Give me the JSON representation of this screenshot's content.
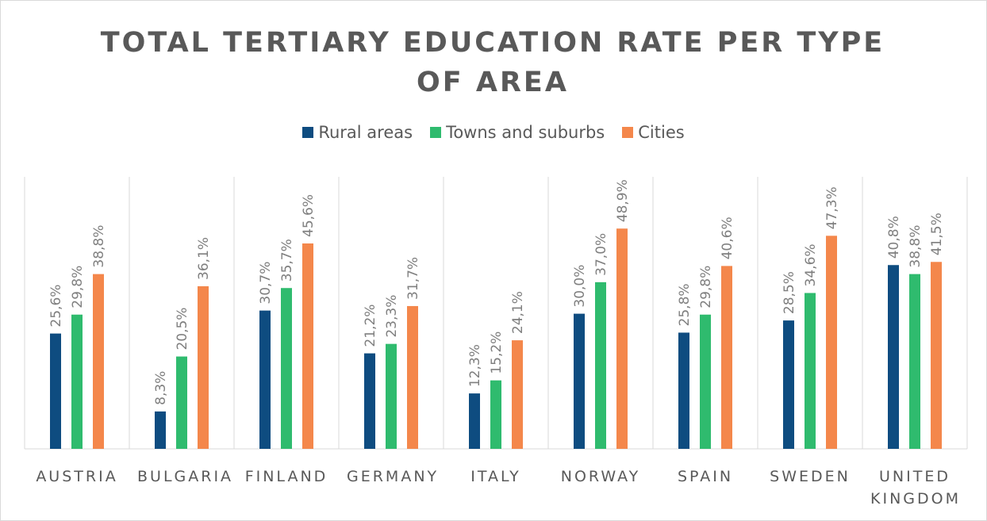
{
  "chart_data": {
    "type": "bar",
    "title": "TOTAL TERTIARY EDUCATION RATE PER TYPE OF AREA",
    "categories": [
      "AUSTRIA",
      "BULGARIA",
      "FINLAND",
      "GERMANY",
      "ITALY",
      "NORWAY",
      "SPAIN",
      "SWEDEN",
      "UNITED KINGDOM"
    ],
    "ylim": [
      0,
      50
    ],
    "legend": "top",
    "series": [
      {
        "name": "Rural areas",
        "color": "#0e4c80",
        "values": [
          25.6,
          8.3,
          30.7,
          21.2,
          12.3,
          30.0,
          25.8,
          28.5,
          40.8
        ],
        "value_labels": [
          "25,6%",
          "8,3%",
          "30,7%",
          "21,2%",
          "12,3%",
          "30,0%",
          "25,8%",
          "28,5%",
          "40,8%"
        ]
      },
      {
        "name": "Towns and suburbs",
        "color": "#2fbb6e",
        "values": [
          29.8,
          20.5,
          35.7,
          23.3,
          15.2,
          37.0,
          29.8,
          34.6,
          38.8
        ],
        "value_labels": [
          "29,8%",
          "20,5%",
          "35,7%",
          "23,3%",
          "15,2%",
          "37,0%",
          "29,8%",
          "34,6%",
          "38,8%"
        ]
      },
      {
        "name": "Cities",
        "color": "#f4874b",
        "values": [
          38.8,
          36.1,
          45.6,
          31.7,
          24.1,
          48.9,
          40.6,
          47.3,
          41.5
        ],
        "value_labels": [
          "38,8%",
          "36,1%",
          "45,6%",
          "31,7%",
          "24,1%",
          "48,9%",
          "40,6%",
          "47,3%",
          "41,5%"
        ]
      }
    ]
  }
}
